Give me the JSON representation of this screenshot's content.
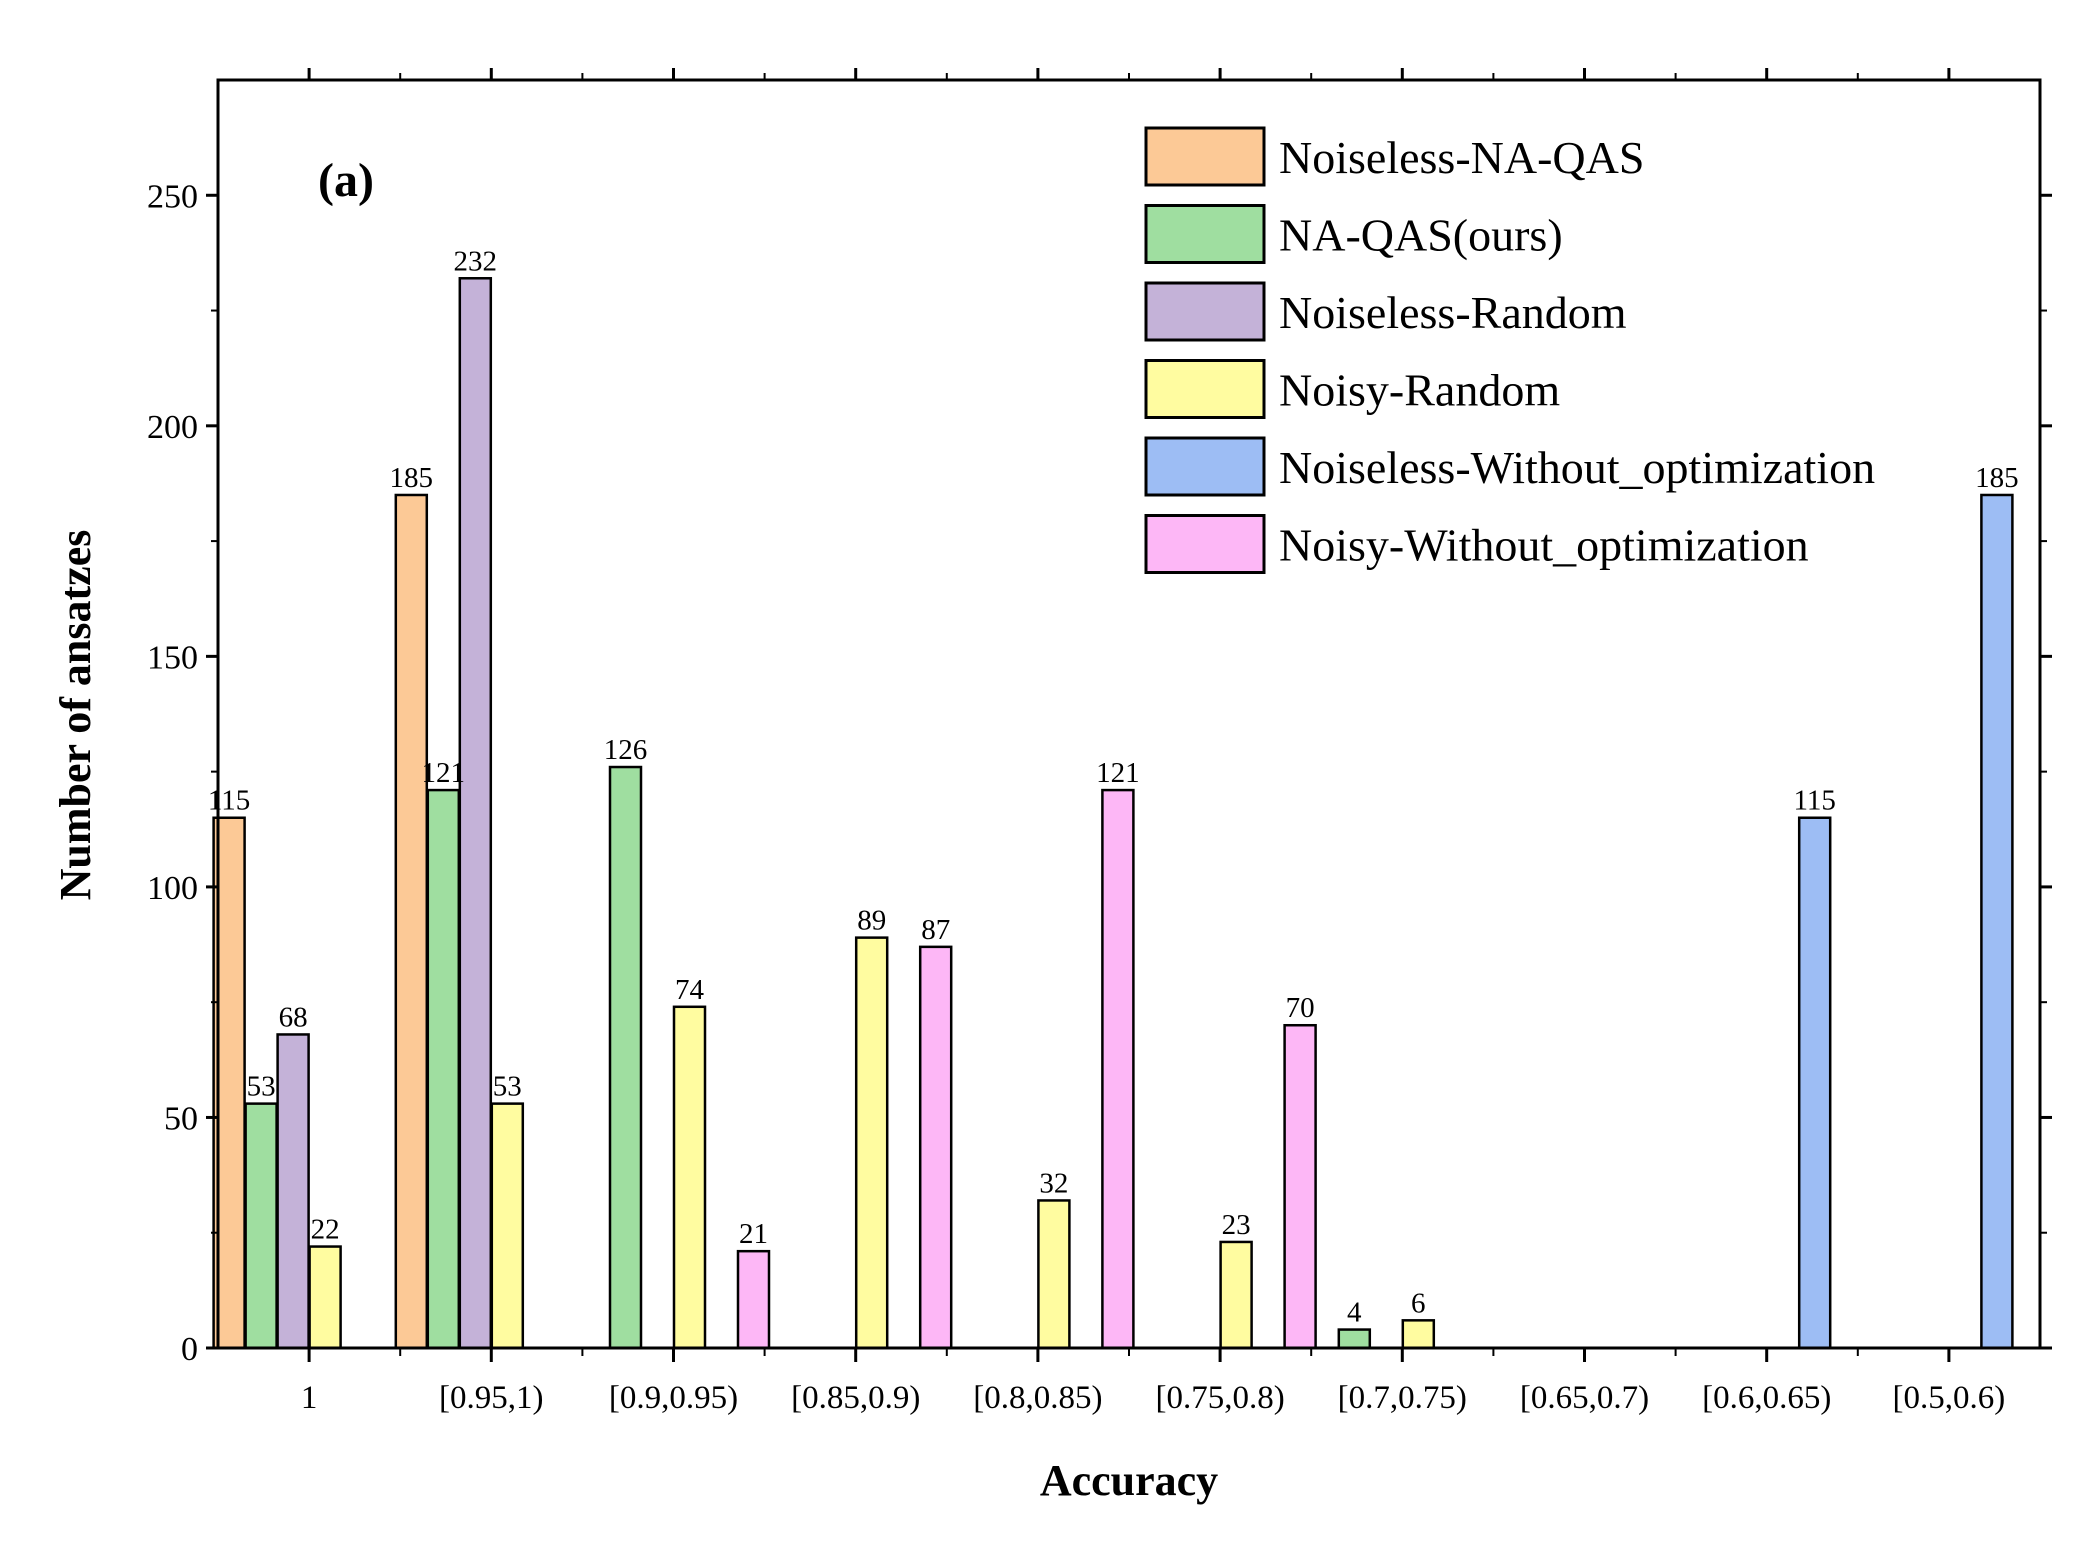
{
  "chart_data": {
    "type": "bar",
    "panel_label": "(a)",
    "xlabel": "Accuracy",
    "ylabel": "Number of ansatzes",
    "ylim": [
      0,
      275
    ],
    "yticks": [
      "0",
      "50",
      "100",
      "150",
      "200",
      "250"
    ],
    "ytick_values": [
      0,
      50,
      100,
      150,
      200,
      250
    ],
    "categories": [
      "1",
      "[0.95,1)",
      "[0.9,0.95)",
      "[0.85,0.9)",
      "[0.8,0.85)",
      "[0.75,0.8)",
      "[0.7,0.75)",
      "[0.65,0.7)",
      "[0.6,0.65)",
      "[0.5,0.6)"
    ],
    "legend_position": "top-right",
    "series": [
      {
        "name": "Noiseless-NA-QAS",
        "color": "#fcc996",
        "values": [
          115,
          185,
          0,
          0,
          0,
          0,
          0,
          0,
          0,
          0
        ],
        "labels": [
          "115",
          "185",
          "",
          "",
          "",
          "",
          "",
          "",
          "",
          ""
        ]
      },
      {
        "name": "NA-QAS(ours)",
        "color": "#9fdea0",
        "values": [
          53,
          121,
          126,
          0,
          0,
          0,
          4,
          0,
          0,
          0
        ],
        "labels": [
          "53",
          "121",
          "126",
          "",
          "",
          "",
          "4",
          "",
          "",
          ""
        ]
      },
      {
        "name": "Noiseless-Random",
        "color": "#c4b2d8",
        "values": [
          68,
          232,
          0,
          0,
          0,
          0,
          0,
          0,
          0,
          0
        ],
        "labels": [
          "68",
          "232",
          "",
          "",
          "",
          "",
          "",
          "",
          "",
          ""
        ]
      },
      {
        "name": "Noisy-Random",
        "color": "#fffca0",
        "values": [
          22,
          53,
          74,
          89,
          32,
          23,
          6,
          0,
          0,
          0
        ],
        "labels": [
          "22",
          "53",
          "74",
          "89",
          "32",
          "23",
          "6",
          "",
          "",
          ""
        ]
      },
      {
        "name": "Noiseless-Without_optimization",
        "color": "#9dbdf4",
        "values": [
          0,
          0,
          0,
          0,
          0,
          0,
          0,
          0,
          115,
          185
        ],
        "labels": [
          "",
          "",
          "",
          "",
          "",
          "",
          "",
          "",
          "115",
          "185"
        ]
      },
      {
        "name": "Noisy-Without_optimization",
        "color": "#fdb7f6",
        "values": [
          0,
          0,
          21,
          87,
          121,
          70,
          0,
          0,
          0,
          0
        ],
        "labels": [
          "",
          "",
          "21",
          "87",
          "121",
          "70",
          "",
          "",
          "",
          ""
        ]
      }
    ]
  }
}
